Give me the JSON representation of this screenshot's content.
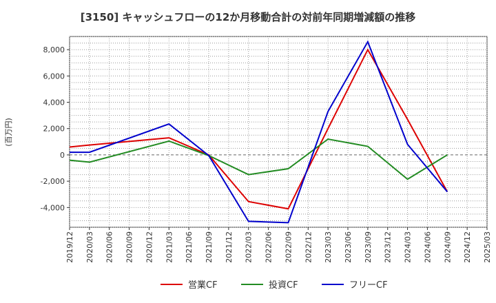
{
  "chart_data": {
    "type": "line",
    "title": "[3150]  キャッシュフローの12か月移動合計の対前年同期増減額の推移",
    "ylabel": "(百万円)",
    "xlabel": "",
    "ylim": [
      -5500,
      9000
    ],
    "yticks": [
      -4000,
      -2000,
      0,
      2000,
      4000,
      6000,
      8000
    ],
    "ytick_labels": [
      "-4,000",
      "-2,000",
      "0",
      "2,000",
      "4,000",
      "6,000",
      "8,000"
    ],
    "categories": [
      "2019/12",
      "2020/03",
      "2020/06",
      "2020/09",
      "2020/12",
      "2021/03",
      "2021/06",
      "2021/09",
      "2021/12",
      "2022/03",
      "2022/06",
      "2022/09",
      "2022/12",
      "2023/03",
      "2023/06",
      "2023/09",
      "2023/12",
      "2024/03",
      "2024/06",
      "2024/09",
      "2024/12",
      "2025/03"
    ],
    "grid": true,
    "legend_position": "bottom",
    "series": [
      {
        "name": "営業CF",
        "color": "#dd0000",
        "values": [
          600,
          750,
          null,
          null,
          null,
          1300,
          null,
          0,
          null,
          -3550,
          null,
          -4100,
          null,
          2000,
          null,
          8000,
          null,
          2700,
          null,
          -2800,
          null,
          null
        ]
      },
      {
        "name": "投資CF",
        "color": "#228b22",
        "values": [
          -400,
          -550,
          null,
          null,
          null,
          1050,
          null,
          -50,
          null,
          -1500,
          null,
          -1050,
          null,
          1200,
          null,
          650,
          null,
          -1850,
          null,
          0,
          null,
          null
        ]
      },
      {
        "name": "フリーCF",
        "color": "#0000cc",
        "values": [
          200,
          200,
          null,
          null,
          null,
          2350,
          null,
          -50,
          null,
          -5050,
          null,
          -5150,
          null,
          3300,
          null,
          8600,
          null,
          800,
          null,
          -2800,
          null,
          null
        ]
      }
    ]
  }
}
